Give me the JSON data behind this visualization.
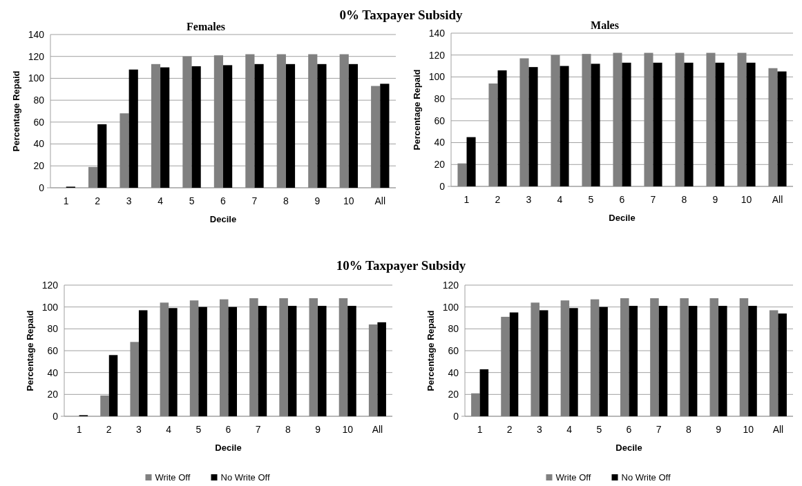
{
  "chart_data": [
    {
      "type": "bar",
      "title": "Females",
      "subtitle": "0% Taxpayer Subsidy",
      "xlabel": "Decile",
      "ylabel": "Percentage Repaid",
      "categories": [
        "1",
        "2",
        "3",
        "4",
        "5",
        "6",
        "7",
        "8",
        "9",
        "10",
        "All"
      ],
      "ylim": [
        0,
        140
      ],
      "yticks": [
        0,
        20,
        40,
        60,
        80,
        100,
        120,
        140
      ],
      "grid": "y",
      "legend": false,
      "series": [
        {
          "color": "#808080",
          "values": [
            0,
            19,
            68,
            113,
            120,
            121,
            122,
            122,
            122,
            122,
            93
          ]
        },
        {
          "color": "#000000",
          "values": [
            1,
            58,
            108,
            110,
            111,
            112,
            113,
            113,
            113,
            113,
            95
          ]
        }
      ]
    },
    {
      "type": "bar",
      "title": "Males",
      "xlabel": "Decile",
      "ylabel": "Percentage Repaid",
      "categories": [
        "1",
        "2",
        "3",
        "4",
        "5",
        "6",
        "7",
        "8",
        "9",
        "10",
        "All"
      ],
      "ylim": [
        0,
        140
      ],
      "yticks": [
        0,
        20,
        40,
        60,
        80,
        100,
        120,
        140
      ],
      "grid": "y",
      "legend": false,
      "series": [
        {
          "color": "#808080",
          "values": [
            21,
            94,
            117,
            120,
            121,
            122,
            122,
            122,
            122,
            122,
            108
          ]
        },
        {
          "color": "#000000",
          "values": [
            45,
            106,
            109,
            110,
            112,
            113,
            113,
            113,
            113,
            113,
            105
          ]
        }
      ]
    },
    {
      "type": "bar",
      "subtitle": "10% Taxpayer Subsidy",
      "xlabel": "Decile",
      "ylabel": "Percentage Repaid",
      "categories": [
        "1",
        "2",
        "3",
        "4",
        "5",
        "6",
        "7",
        "8",
        "9",
        "10",
        "All"
      ],
      "ylim": [
        0,
        120
      ],
      "yticks": [
        0,
        20,
        40,
        60,
        80,
        100,
        120
      ],
      "grid": "y",
      "legend": "bottom",
      "series": [
        {
          "name": "Write Off",
          "color": "#808080",
          "values": [
            0,
            19,
            68,
            104,
            106,
            107,
            108,
            108,
            108,
            108,
            84
          ]
        },
        {
          "name": "No Write Off",
          "color": "#000000",
          "values": [
            1,
            56,
            97,
            99,
            100,
            100,
            101,
            101,
            101,
            101,
            86
          ]
        }
      ]
    },
    {
      "type": "bar",
      "xlabel": "Decile",
      "ylabel": "Percentage Repaid",
      "categories": [
        "1",
        "2",
        "3",
        "4",
        "5",
        "6",
        "7",
        "8",
        "9",
        "10",
        "All"
      ],
      "ylim": [
        0,
        120
      ],
      "yticks": [
        0,
        20,
        40,
        60,
        80,
        100,
        120
      ],
      "grid": "y",
      "legend": "bottom",
      "series": [
        {
          "name": "Write Off",
          "color": "#808080",
          "values": [
            21,
            91,
            104,
            106,
            107,
            108,
            108,
            108,
            108,
            108,
            97
          ]
        },
        {
          "name": "No Write Off",
          "color": "#000000",
          "values": [
            43,
            95,
            97,
            99,
            100,
            101,
            101,
            101,
            101,
            101,
            94
          ]
        }
      ]
    }
  ]
}
